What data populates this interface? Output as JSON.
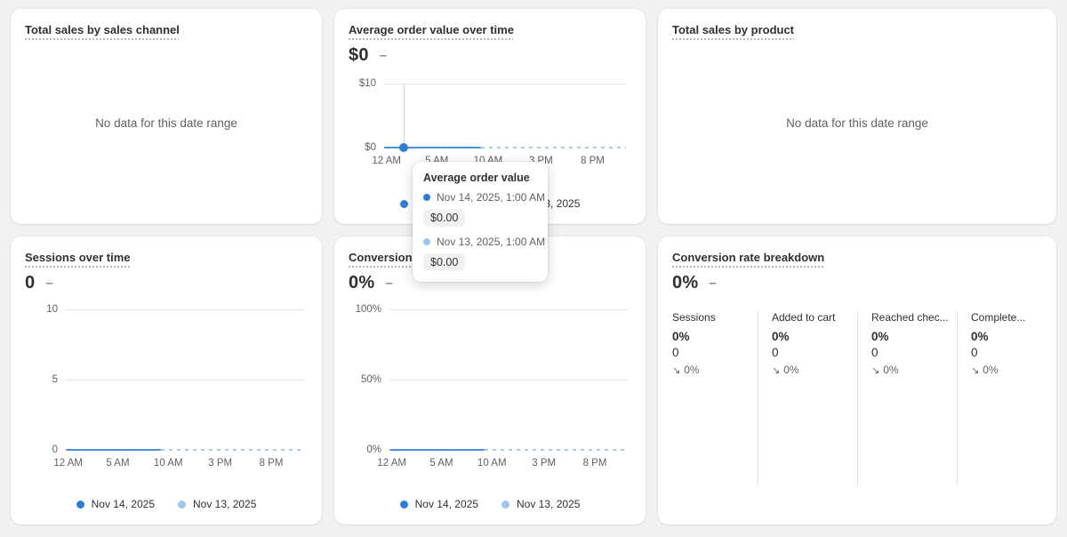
{
  "colors": {
    "page_background": "#f1f1f1",
    "card_background": "#ffffff",
    "series_current": "#2e7dd1",
    "series_previous": "#9cc6ee",
    "line_solid": "#4a90d6",
    "line_dashed": "#a7cae9",
    "axis_text": "#616161",
    "gridline": "#e4e4e4"
  },
  "icons": {
    "decrease_arrow": "↘"
  },
  "cards": {
    "sales_by_channel": {
      "title": "Total sales by sales channel",
      "empty_message": "No data for this date range"
    },
    "aov": {
      "title": "Average order value over time",
      "big_value": "$0",
      "change_indicator": "–",
      "y_ticks": [
        "$10",
        "$0"
      ],
      "x_ticks": [
        "12 AM",
        "5 AM",
        "10 AM",
        "3 PM",
        "8 PM"
      ],
      "legend": [
        {
          "label": "Nov 14, 2025"
        },
        {
          "label": "Nov 13, 2025"
        }
      ],
      "tooltip": {
        "title": "Average order value",
        "rows": [
          {
            "date": "Nov 14, 2025, 1:00 AM",
            "value": "$0.00"
          },
          {
            "date": "Nov 13, 2025, 1:00 AM",
            "value": "$0.00"
          }
        ]
      }
    },
    "sales_by_product": {
      "title": "Total sales by product",
      "empty_message": "No data for this date range"
    },
    "sessions": {
      "title": "Sessions over time",
      "big_value": "0",
      "change_indicator": "–",
      "y_ticks": [
        "10",
        "5",
        "0"
      ],
      "x_ticks": [
        "12 AM",
        "5 AM",
        "10 AM",
        "3 PM",
        "8 PM"
      ],
      "legend": [
        {
          "label": "Nov 14, 2025"
        },
        {
          "label": "Nov 13, 2025"
        }
      ]
    },
    "conversion_rate": {
      "title": "Conversion rate over time",
      "big_value": "0%",
      "change_indicator": "–",
      "y_ticks": [
        "100%",
        "50%",
        "0%"
      ],
      "x_ticks": [
        "12 AM",
        "5 AM",
        "10 AM",
        "3 PM",
        "8 PM"
      ],
      "legend": [
        {
          "label": "Nov 14, 2025"
        },
        {
          "label": "Nov 13, 2025"
        }
      ]
    },
    "conversion_breakdown": {
      "title": "Conversion rate breakdown",
      "big_value": "0%",
      "change_indicator": "–",
      "columns": [
        {
          "label": "Sessions",
          "rate": "0%",
          "count": "0",
          "delta": "0%"
        },
        {
          "label": "Added to cart",
          "rate": "0%",
          "count": "0",
          "delta": "0%"
        },
        {
          "label": "Reached chec...",
          "rate": "0%",
          "count": "0",
          "delta": "0%"
        },
        {
          "label": "Complete...",
          "rate": "0%",
          "count": "0",
          "delta": "0%"
        }
      ]
    }
  },
  "chart_data": [
    {
      "type": "line",
      "title": "Average order value over time",
      "summary_value": "$0",
      "ylabel": "",
      "xlabel": "",
      "ylim": [
        0,
        10
      ],
      "y_tick_labels": [
        "$0",
        "$10"
      ],
      "x_tick_labels": [
        "12 AM",
        "5 AM",
        "10 AM",
        "3 PM",
        "8 PM"
      ],
      "grid": "top gridline only",
      "legend_position": "bottom-center",
      "series": [
        {
          "name": "Nov 14, 2025",
          "style": "solid",
          "extent": "12 AM to ~10 AM",
          "values": "flat at 0"
        },
        {
          "name": "Nov 13, 2025",
          "style": "dashed",
          "extent": "~10 AM to 11 PM",
          "values": "flat at 0"
        }
      ],
      "hovered_point": {
        "x": "1:00 AM",
        "y": 0,
        "crosshair": true
      }
    },
    {
      "type": "line",
      "title": "Sessions over time",
      "summary_value": "0",
      "ylim": [
        0,
        10
      ],
      "y_tick_labels": [
        "0",
        "5",
        "10"
      ],
      "x_tick_labels": [
        "12 AM",
        "5 AM",
        "10 AM",
        "3 PM",
        "8 PM"
      ],
      "grid": "gridlines at 5 and 10",
      "legend_position": "bottom-center",
      "series": [
        {
          "name": "Nov 14, 2025",
          "style": "solid",
          "extent": "12 AM to ~10 AM",
          "values": "flat at 0"
        },
        {
          "name": "Nov 13, 2025",
          "style": "dashed",
          "extent": "~10 AM to 11 PM",
          "values": "flat at 0"
        }
      ]
    },
    {
      "type": "line",
      "title": "Conversion rate over time",
      "summary_value": "0%",
      "ylim": [
        0,
        100
      ],
      "y_tick_labels": [
        "0%",
        "50%",
        "100%"
      ],
      "x_tick_labels": [
        "12 AM",
        "5 AM",
        "10 AM",
        "3 PM",
        "8 PM"
      ],
      "grid": "gridlines at 50% and 100%",
      "legend_position": "bottom-center",
      "series": [
        {
          "name": "Nov 14, 2025",
          "style": "solid",
          "extent": "12 AM to ~10 AM",
          "values": "flat at 0"
        },
        {
          "name": "Nov 13, 2025",
          "style": "dashed",
          "extent": "~10 AM to 11 PM",
          "values": "flat at 0"
        }
      ]
    },
    {
      "type": "table",
      "title": "Conversion rate breakdown",
      "summary_value": "0%",
      "columns": [
        "Sessions",
        "Added to cart",
        "Reached chec...",
        "Complete..."
      ],
      "rows": [
        {
          "rate": "0%",
          "count": 0,
          "change": "down 0%"
        },
        {
          "rate": "0%",
          "count": 0,
          "change": "down 0%"
        },
        {
          "rate": "0%",
          "count": 0,
          "change": "down 0%"
        },
        {
          "rate": "0%",
          "count": 0,
          "change": "down 0%"
        }
      ]
    }
  ]
}
